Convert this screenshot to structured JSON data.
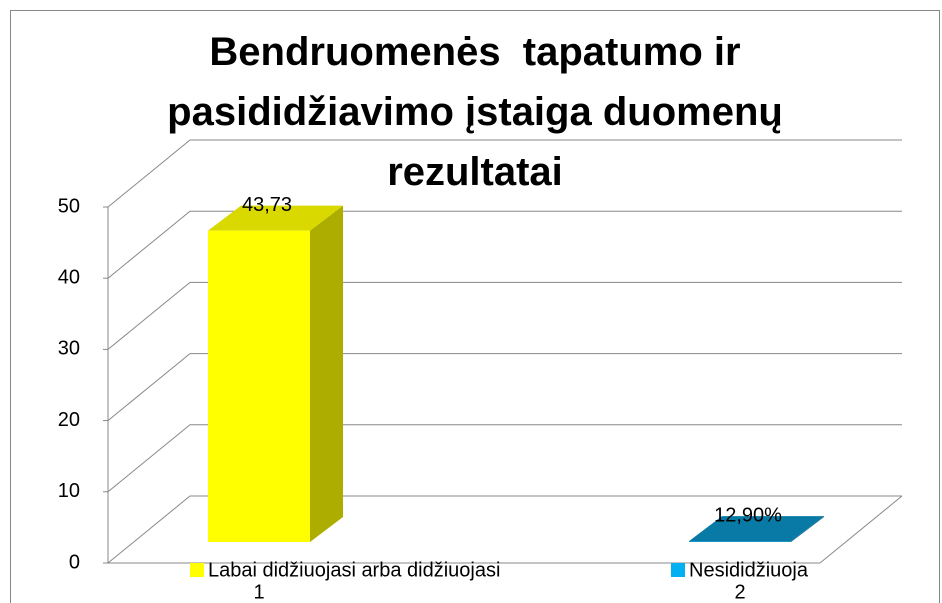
{
  "chart_data": {
    "type": "bar3d",
    "title": "Bendruomenės  tapatumo ir pasididžiavimo įstaiga duomenų rezultatai",
    "categories": [
      "1",
      "2"
    ],
    "series": [
      {
        "name": "Labai didžiuojasi arba didžiuojasi",
        "color": "#ffff00",
        "values": [
          43.73,
          null
        ],
        "value_labels": [
          "43,73",
          null
        ]
      },
      {
        "name": "Nesididžiuoja",
        "color": "#0a8fc2",
        "legend_color": "#00b0f0",
        "values": [
          null,
          0.129
        ],
        "value_labels": [
          null,
          "12,90%"
        ]
      }
    ],
    "ylim": [
      0,
      50
    ],
    "yticks": [
      0,
      10,
      20,
      30,
      40,
      50
    ],
    "grid": true
  }
}
